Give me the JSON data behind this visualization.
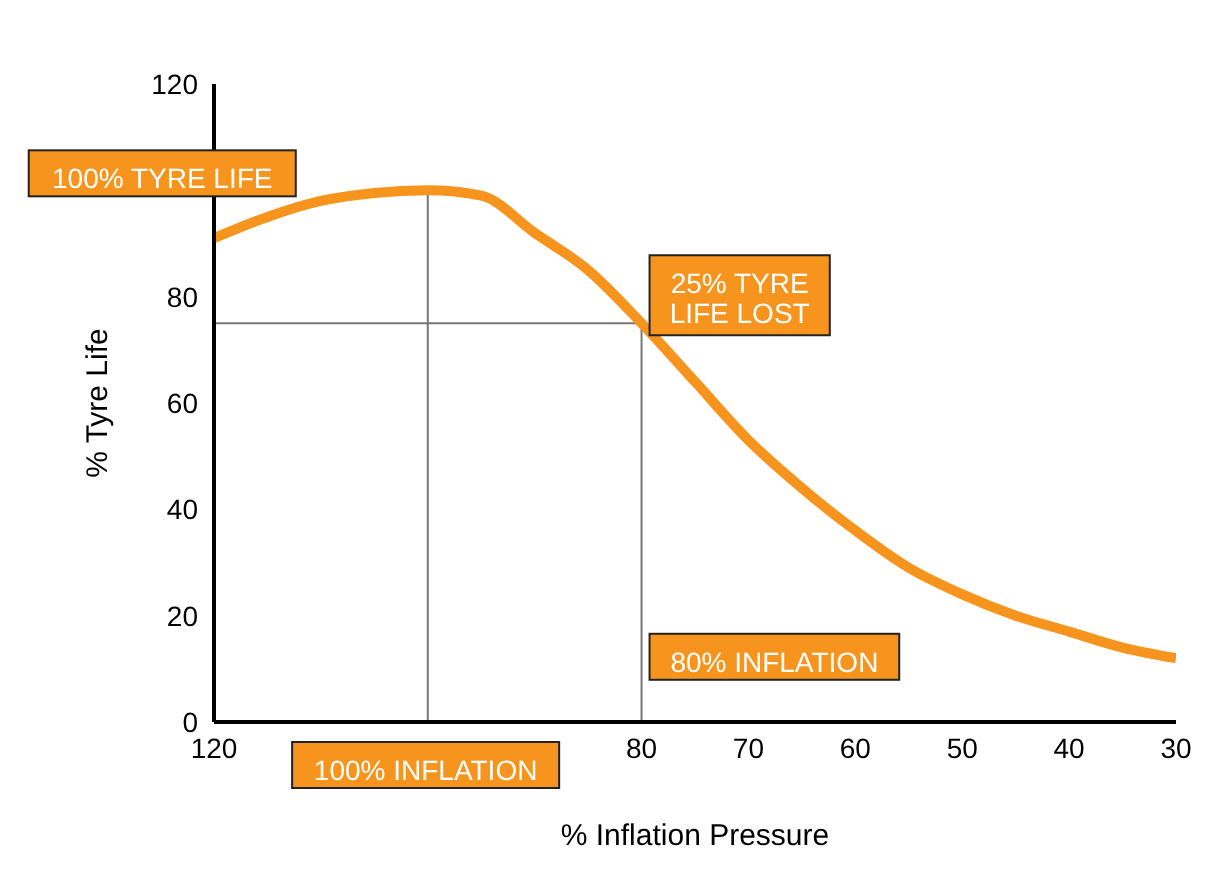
{
  "chart_data": {
    "type": "line",
    "xlabel": "% Inflation Pressure",
    "ylabel": "% Tyre Life",
    "x": [
      120,
      115,
      110,
      105,
      100,
      95,
      90,
      85,
      80,
      75,
      70,
      65,
      60,
      55,
      50,
      45,
      40,
      35,
      30
    ],
    "series": [
      {
        "color": "#f7941d",
        "values": [
          91,
          95,
          98,
          99.5,
          100,
          99,
          92,
          85,
          75,
          64,
          53,
          44,
          36,
          29,
          24,
          20,
          17,
          14,
          12
        ]
      }
    ],
    "xlim": [
      120,
      30
    ],
    "xticks": [
      120,
      80,
      70,
      60,
      50,
      40,
      30
    ],
    "ylim": [
      0,
      120
    ],
    "yticks": [
      0,
      20,
      40,
      60,
      80,
      120
    ],
    "grid": false,
    "marker": "none",
    "line_style": "solid",
    "ref_lines": [
      {
        "axis": "y",
        "value": 75,
        "color": "#777777"
      },
      {
        "axis": "x",
        "value": 100,
        "color": "#777777"
      },
      {
        "axis": "x",
        "value": 80,
        "color": "#777777"
      }
    ],
    "annotations": [
      "100% TYRE LIFE",
      {
        "text": "25% TYRE LIFE LOST",
        "x": 80,
        "y": 75
      },
      {
        "text": "80% INFLATION",
        "x": 80,
        "y": 7
      },
      "100% INFLATION"
    ]
  }
}
